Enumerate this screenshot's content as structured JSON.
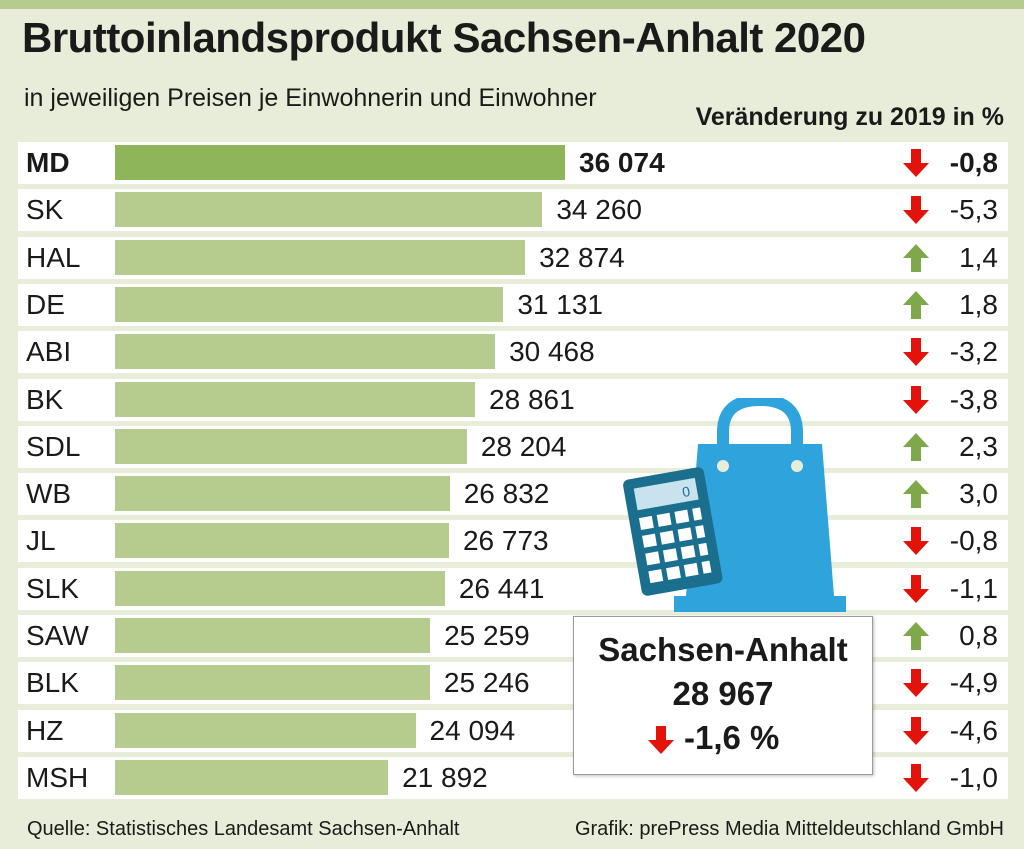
{
  "header": {
    "title": "Bruttoinlandsprodukt Sachsen-Anhalt 2020",
    "subtitle": "in jeweiligen Preisen je Einwohnerin und Einwohner",
    "change_column_label": "Veränderung zu 2019 in %"
  },
  "colors": {
    "bar": "#b5cc8e",
    "bar_highlight": "#8fb55b",
    "up": "#7fa84a",
    "down": "#e3120b",
    "bag": "#2fa4dc",
    "calculator": "#1b6f8e"
  },
  "chart_data": {
    "type": "bar",
    "orientation": "horizontal",
    "title": "Bruttoinlandsprodukt Sachsen-Anhalt 2020",
    "subtitle": "in jeweiligen Preisen je Einwohnerin und Einwohner",
    "xlim": [
      0,
      40000
    ],
    "categories": [
      "MD",
      "SK",
      "HAL",
      "DE",
      "ABI",
      "BK",
      "SDL",
      "WB",
      "JL",
      "SLK",
      "SAW",
      "BLK",
      "HZ",
      "MSH"
    ],
    "value_labels": [
      "36 074",
      "34 260",
      "32 874",
      "31 131",
      "30 468",
      "28 861",
      "28 204",
      "26 832",
      "26 773",
      "26 441",
      "25 259",
      "25 246",
      "24 094",
      "21 892"
    ],
    "values": [
      36074,
      34260,
      32874,
      31131,
      30468,
      28861,
      28204,
      26832,
      26773,
      26441,
      25259,
      25246,
      24094,
      21892
    ],
    "change_labels": [
      "-0,8",
      "-5,3",
      "1,4",
      "1,8",
      "-3,2",
      "-3,8",
      "2,3",
      "3,0",
      "-0,8",
      "-1,1",
      "0,8",
      "-4,9",
      "-4,6",
      "-1,0"
    ],
    "changes": [
      -0.8,
      -5.3,
      1.4,
      1.8,
      -3.2,
      -3.8,
      2.3,
      3.0,
      -0.8,
      -1.1,
      0.8,
      -4.9,
      -4.6,
      -1.0
    ],
    "highlight": "MD",
    "grid": false,
    "legend": "none"
  },
  "summary": {
    "name": "Sachsen-Anhalt",
    "value_label": "28 967",
    "change_label": "-1,6 %",
    "change": -1.6
  },
  "icons": {
    "up": "arrow-up-icon",
    "down": "arrow-down-icon",
    "bag": "shopping-bag-icon",
    "calc": "calculator-icon"
  },
  "footer": {
    "source": "Quelle: Statistisches Landesamt Sachsen-Anhalt",
    "credit": "Grafik: prePress Media Mitteldeutschland GmbH"
  }
}
